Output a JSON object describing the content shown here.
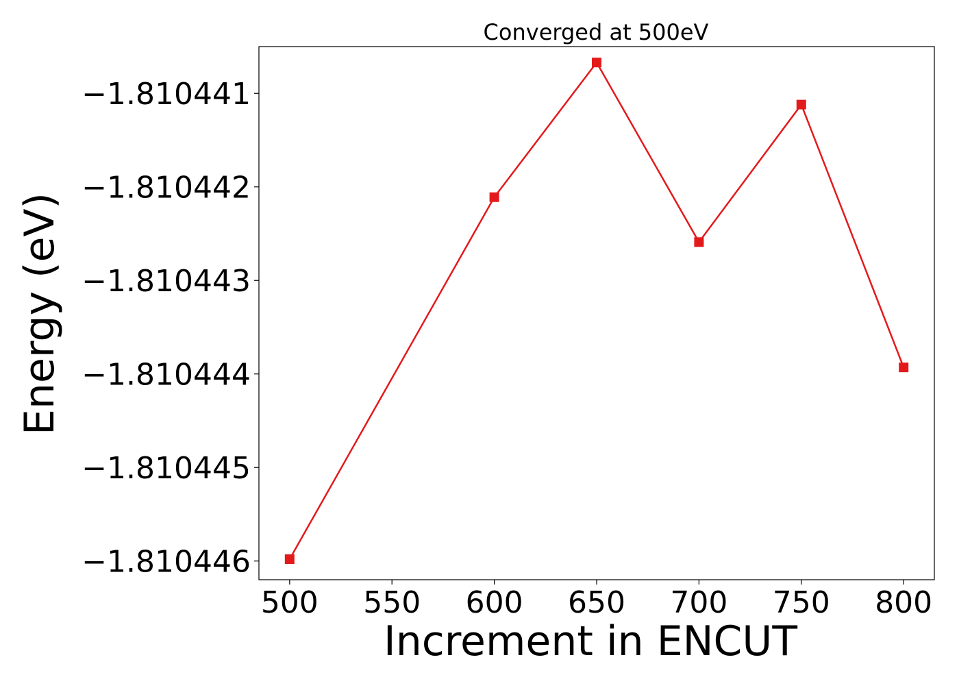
{
  "chart_data": {
    "type": "line",
    "title": "Converged at 500eV",
    "xlabel": "Increment in ENCUT",
    "ylabel": "Energy (eV)",
    "x": [
      500,
      600,
      650,
      700,
      750,
      800
    ],
    "series": [
      {
        "values": [
          -1.81044598,
          -1.81044211,
          -1.81044067,
          -1.81044259,
          -1.81044112,
          -1.81044393
        ],
        "color": "#e31a1c",
        "marker": "square"
      }
    ],
    "xlim": [
      485,
      815
    ],
    "ylim": [
      -1.8104462,
      -1.8104405
    ],
    "xticks": [
      500,
      550,
      600,
      650,
      700,
      750,
      800
    ],
    "xtick_labels": [
      "500",
      "550",
      "600",
      "650",
      "700",
      "750",
      "800"
    ],
    "yticks": [
      -1.810446,
      -1.810445,
      -1.810444,
      -1.810443,
      -1.810442,
      -1.810441
    ],
    "ytick_labels": [
      "−1.810446",
      "−1.810445",
      "−1.810444",
      "−1.810443",
      "−1.810442",
      "−1.810441"
    ],
    "grid": false,
    "legend": "none"
  }
}
